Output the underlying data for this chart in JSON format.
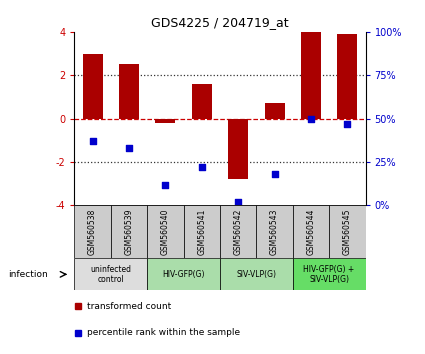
{
  "title": "GDS4225 / 204719_at",
  "samples": [
    "GSM560538",
    "GSM560539",
    "GSM560540",
    "GSM560541",
    "GSM560542",
    "GSM560543",
    "GSM560544",
    "GSM560545"
  ],
  "transformed_counts": [
    3.0,
    2.5,
    -0.2,
    1.6,
    -2.8,
    0.7,
    4.0,
    3.9
  ],
  "percentile_ranks": [
    37,
    33,
    12,
    22,
    2,
    18,
    50,
    47
  ],
  "bar_color": "#AA0000",
  "dot_color": "#0000CC",
  "left_tick_color": "#CC0000",
  "ylim_left": [
    -4,
    4
  ],
  "ylim_right": [
    0,
    100
  ],
  "yticks_left": [
    -4,
    -2,
    0,
    2,
    4
  ],
  "yticks_right": [
    0,
    25,
    50,
    75,
    100
  ],
  "ytick_labels_right": [
    "0%",
    "25%",
    "50%",
    "75%",
    "100%"
  ],
  "hline_zero_color": "#CC0000",
  "hline_dotted_color": "#333333",
  "groups": [
    {
      "label": "uninfected\ncontrol",
      "start": 0,
      "end": 2,
      "color": "#dddddd"
    },
    {
      "label": "HIV-GFP(G)",
      "start": 2,
      "end": 4,
      "color": "#aaddaa"
    },
    {
      "label": "SIV-VLP(G)",
      "start": 4,
      "end": 6,
      "color": "#aaddaa"
    },
    {
      "label": "HIV-GFP(G) +\nSIV-VLP(G)",
      "start": 6,
      "end": 8,
      "color": "#66dd66"
    }
  ],
  "infection_label": "infection",
  "legend_bar_label": "transformed count",
  "legend_dot_label": "percentile rank within the sample",
  "header_bg": "#cccccc"
}
